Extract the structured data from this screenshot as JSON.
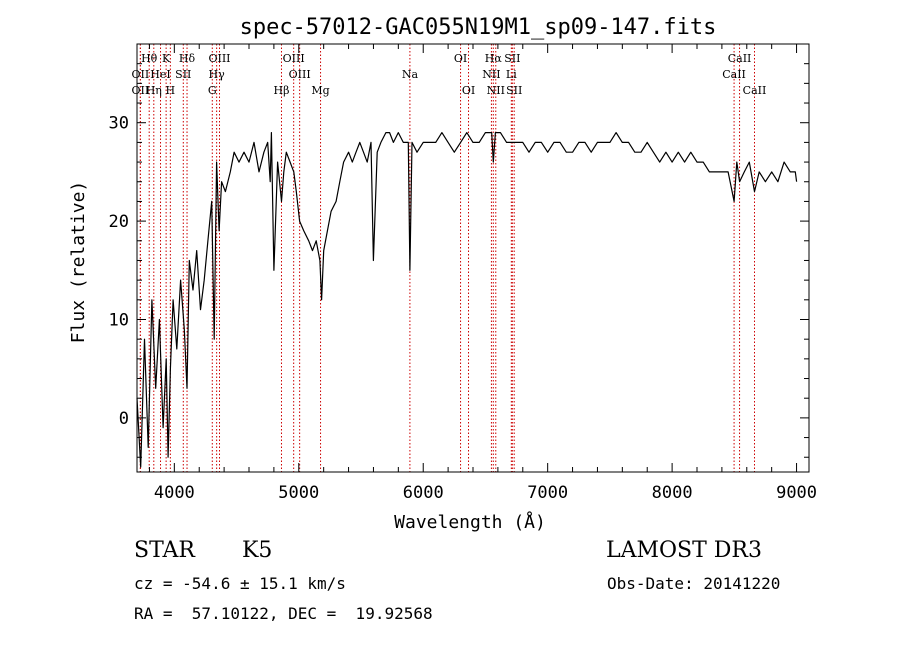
{
  "chart_data": {
    "type": "line",
    "title": "spec-57012-GAC055N19M1_sp09-147.fits",
    "xlabel": "Wavelength (Å)",
    "ylabel": "Flux (relative)",
    "xlim": [
      3700,
      9100
    ],
    "ylim": [
      -5.5,
      38
    ],
    "xticks": [
      4000,
      5000,
      6000,
      7000,
      8000,
      9000
    ],
    "xtick_labels": [
      "4000",
      "5000",
      "6000",
      "7000",
      "8000",
      "9000"
    ],
    "yticks": [
      0,
      10,
      20,
      30
    ],
    "ytick_labels": [
      "0",
      "10",
      "20",
      "30"
    ],
    "line_color": "#000000",
    "marker_color": "#cc0000",
    "series": [
      {
        "name": "spectrum",
        "x": [
          3700,
          3730,
          3760,
          3790,
          3820,
          3850,
          3880,
          3910,
          3935,
          3950,
          3968,
          3990,
          4020,
          4050,
          4080,
          4102,
          4120,
          4150,
          4180,
          4210,
          4240,
          4270,
          4300,
          4320,
          4340,
          4360,
          4380,
          4410,
          4450,
          4480,
          4520,
          4560,
          4600,
          4640,
          4680,
          4720,
          4750,
          4770,
          4780,
          4800,
          4830,
          4861,
          4880,
          4900,
          4930,
          4960,
          4980,
          5007,
          5040,
          5080,
          5110,
          5140,
          5170,
          5183,
          5200,
          5230,
          5260,
          5300,
          5330,
          5360,
          5400,
          5430,
          5460,
          5490,
          5520,
          5550,
          5580,
          5600,
          5630,
          5660,
          5700,
          5730,
          5760,
          5800,
          5840,
          5880,
          5893,
          5910,
          5950,
          6000,
          6050,
          6100,
          6150,
          6200,
          6250,
          6300,
          6350,
          6400,
          6450,
          6500,
          6550,
          6563,
          6580,
          6620,
          6670,
          6720,
          6760,
          6800,
          6850,
          6900,
          6950,
          7000,
          7050,
          7100,
          7150,
          7200,
          7250,
          7300,
          7350,
          7400,
          7450,
          7500,
          7550,
          7600,
          7650,
          7700,
          7750,
          7800,
          7850,
          7900,
          7950,
          8000,
          8050,
          8100,
          8150,
          8200,
          8250,
          8300,
          8350,
          8400,
          8450,
          8498,
          8520,
          8542,
          8580,
          8620,
          8662,
          8700,
          8750,
          8800,
          8850,
          8900,
          8950,
          8990,
          9000
        ],
        "values": [
          2,
          -5,
          8,
          -3,
          12,
          3,
          10,
          -1,
          6,
          -4,
          5,
          12,
          7,
          14,
          9,
          3,
          16,
          13,
          17,
          11,
          14,
          18,
          22,
          8,
          26,
          19,
          24,
          23,
          25,
          27,
          26,
          27,
          26,
          28,
          25,
          27,
          28,
          24,
          29,
          15,
          26,
          22,
          25,
          27,
          26,
          25,
          23,
          20,
          19,
          18,
          17,
          18,
          16,
          12,
          17,
          19,
          21,
          22,
          24,
          26,
          27,
          26,
          27,
          28,
          27,
          26,
          28,
          16,
          27,
          28,
          29,
          29,
          28,
          29,
          28,
          28,
          15,
          28,
          27,
          28,
          28,
          28,
          29,
          28,
          27,
          28,
          29,
          28,
          28,
          29,
          29,
          26,
          29,
          29,
          28,
          28,
          28,
          28,
          27,
          28,
          28,
          27,
          28,
          28,
          27,
          27,
          28,
          28,
          27,
          28,
          28,
          28,
          29,
          28,
          28,
          27,
          27,
          28,
          27,
          26,
          27,
          26,
          27,
          26,
          27,
          26,
          26,
          25,
          25,
          25,
          25,
          22,
          26,
          24,
          25,
          26,
          23,
          25,
          24,
          25,
          24,
          26,
          25,
          25,
          24
        ]
      }
    ],
    "lines": [
      {
        "label": "Hθ",
        "wl": 3798,
        "row": 0
      },
      {
        "label": "OII",
        "wl": 3727,
        "row": 1
      },
      {
        "label": "OII",
        "wl": 3727,
        "row": 2
      },
      {
        "label": "Hη",
        "wl": 3835,
        "row": 2
      },
      {
        "label": "K",
        "wl": 3934,
        "row": 0
      },
      {
        "label": "HeI",
        "wl": 3889,
        "row": 1
      },
      {
        "label": "H",
        "wl": 3968,
        "row": 2
      },
      {
        "label": "Hδ",
        "wl": 4102,
        "row": 0
      },
      {
        "label": "SII",
        "wl": 4072,
        "row": 1
      },
      {
        "label": "OIII",
        "wl": 4363,
        "row": 0
      },
      {
        "label": "Hγ",
        "wl": 4340,
        "row": 1
      },
      {
        "label": "G",
        "wl": 4305,
        "row": 2
      },
      {
        "label": "OIII",
        "wl": 4959,
        "row": 0
      },
      {
        "label": "OIII",
        "wl": 5007,
        "row": 1
      },
      {
        "label": "Hβ",
        "wl": 4861,
        "row": 2
      },
      {
        "label": "Mg",
        "wl": 5175,
        "row": 2
      },
      {
        "label": "Na",
        "wl": 5893,
        "row": 1
      },
      {
        "label": "OI",
        "wl": 6300,
        "row": 0
      },
      {
        "label": "OI",
        "wl": 6364,
        "row": 2
      },
      {
        "label": "Hα",
        "wl": 6563,
        "row": 0
      },
      {
        "label": "SII",
        "wl": 6716,
        "row": 0
      },
      {
        "label": "NII",
        "wl": 6548,
        "row": 1
      },
      {
        "label": "Li",
        "wl": 6708,
        "row": 1
      },
      {
        "label": "NII",
        "wl": 6583,
        "row": 2
      },
      {
        "label": "SII",
        "wl": 6731,
        "row": 2
      },
      {
        "label": "CaII",
        "wl": 8542,
        "row": 0
      },
      {
        "label": "CaII",
        "wl": 8498,
        "row": 1
      },
      {
        "label": "CaII",
        "wl": 8662,
        "row": 2
      }
    ]
  },
  "info": {
    "class": "STAR",
    "subclass": "K5",
    "survey": "LAMOST DR3",
    "cz": "cz = -54.6 ± 15.1 km/s",
    "obs_date": "Obs-Date: 20141220",
    "coords": "RA =  57.10122, DEC =  19.92568"
  }
}
